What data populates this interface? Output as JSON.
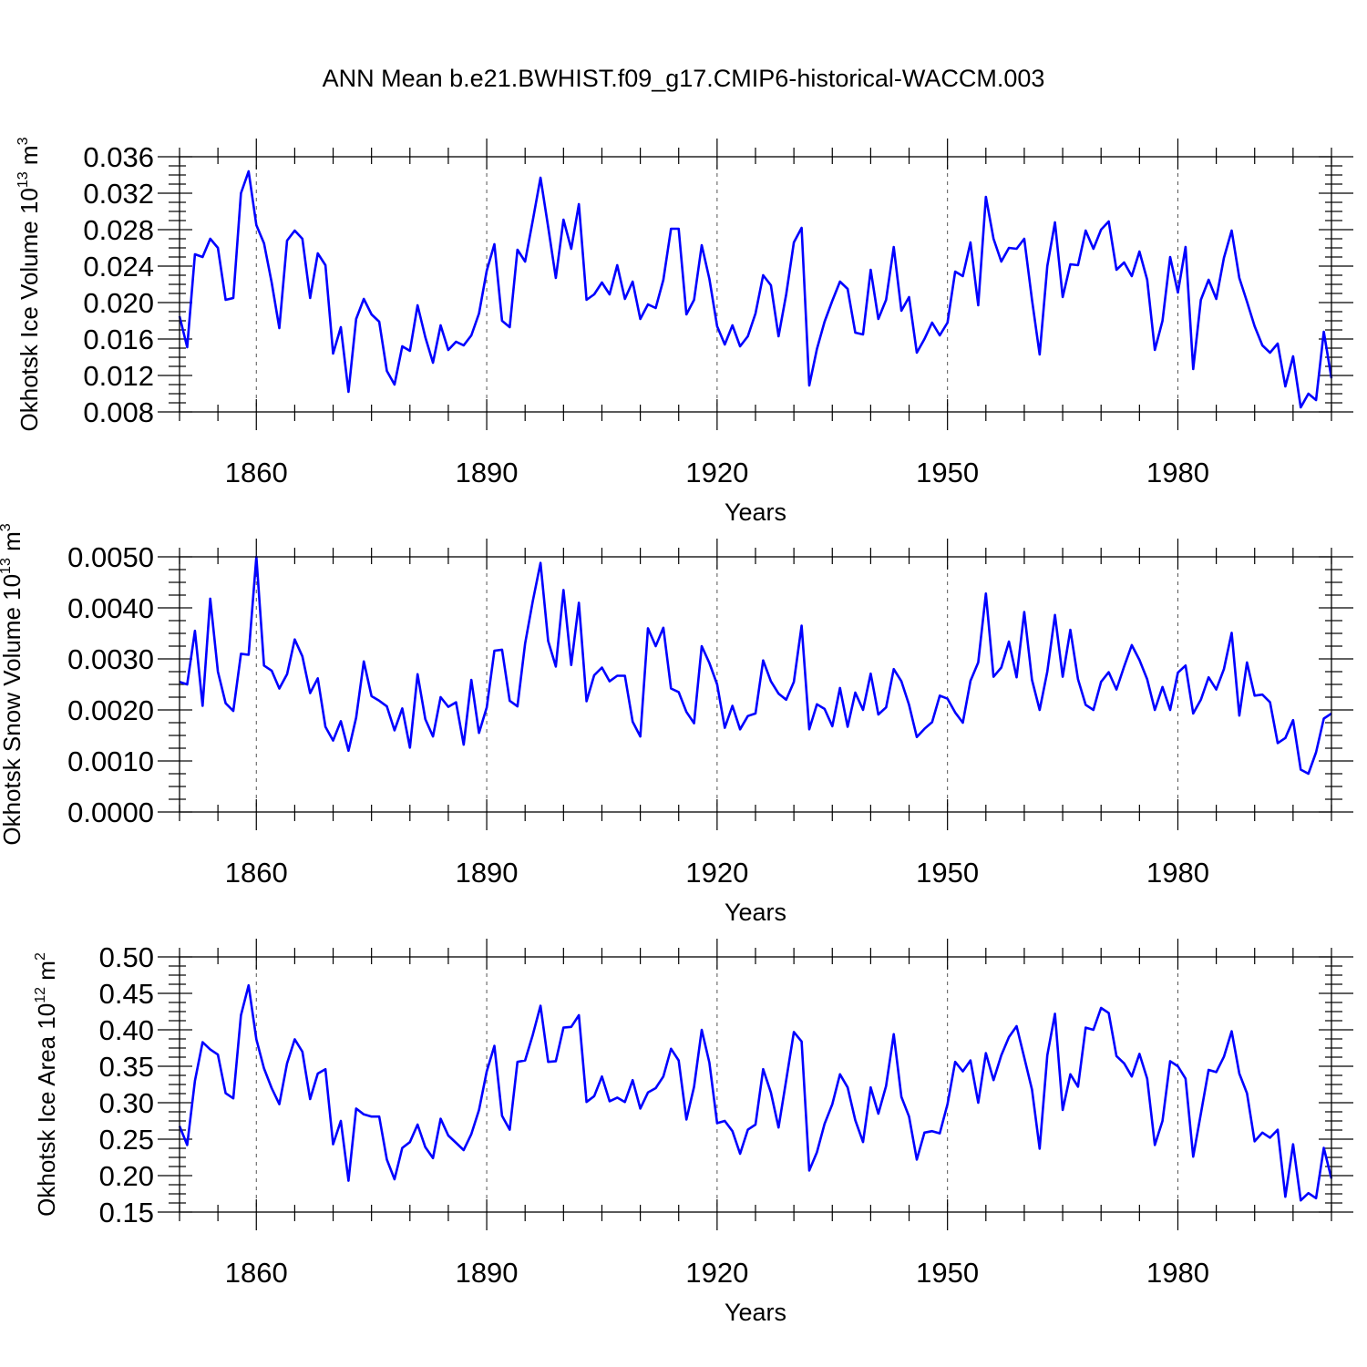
{
  "title": "ANN Mean b.e21.BWHIST.f09_g17.CMIP6-historical-WACCM.003",
  "colors": {
    "line": "#0000ff",
    "axes": "#000000"
  },
  "chart_data": [
    {
      "type": "line",
      "xlabel": "Years",
      "ylabel": {
        "text": "Okhotsk Ice Volume 10",
        "exp": "13",
        "unit": " m",
        "unit_exp": "3"
      },
      "xlim": [
        1850,
        2000
      ],
      "ylim": [
        0.008,
        0.036
      ],
      "xticks": [
        "1860",
        "1890",
        "1920",
        "1950",
        "1980"
      ],
      "yticks": [
        "0.008",
        "0.012",
        "0.016",
        "0.020",
        "0.024",
        "0.028",
        "0.032",
        "0.036"
      ],
      "grid": "dashed vertical at major x ticks",
      "x_start": 1850,
      "values": [
        0.0185,
        0.0151,
        0.0253,
        0.025,
        0.027,
        0.026,
        0.0203,
        0.0205,
        0.032,
        0.0344,
        0.0285,
        0.0265,
        0.0222,
        0.0172,
        0.0268,
        0.0279,
        0.027,
        0.0205,
        0.0254,
        0.0241,
        0.0144,
        0.0173,
        0.0102,
        0.0182,
        0.0204,
        0.0187,
        0.0179,
        0.0125,
        0.011,
        0.0152,
        0.0147,
        0.0197,
        0.0162,
        0.0134,
        0.0175,
        0.0148,
        0.0157,
        0.0153,
        0.0164,
        0.0188,
        0.0235,
        0.0264,
        0.018,
        0.0173,
        0.0258,
        0.0245,
        0.029,
        0.0337,
        0.0283,
        0.0227,
        0.0291,
        0.0259,
        0.0308,
        0.0203,
        0.0209,
        0.0222,
        0.0209,
        0.0241,
        0.0204,
        0.0223,
        0.0182,
        0.0198,
        0.0194,
        0.0225,
        0.0281,
        0.0281,
        0.0187,
        0.0203,
        0.0263,
        0.0226,
        0.0174,
        0.0154,
        0.0175,
        0.0152,
        0.0163,
        0.0188,
        0.023,
        0.0219,
        0.0163,
        0.0209,
        0.0266,
        0.0282,
        0.0109,
        0.0149,
        0.0179,
        0.0202,
        0.0223,
        0.0215,
        0.0167,
        0.0165,
        0.0236,
        0.0182,
        0.0203,
        0.0261,
        0.0191,
        0.0206,
        0.0145,
        0.016,
        0.0178,
        0.0164,
        0.0178,
        0.0234,
        0.0229,
        0.0266,
        0.0197,
        0.0316,
        0.027,
        0.0245,
        0.026,
        0.0259,
        0.027,
        0.0203,
        0.0143,
        0.024,
        0.0288,
        0.0206,
        0.0242,
        0.0241,
        0.0279,
        0.0259,
        0.028,
        0.0289,
        0.0236,
        0.0244,
        0.0229,
        0.0256,
        0.0225,
        0.0148,
        0.018,
        0.025,
        0.0211,
        0.0261,
        0.0127,
        0.0203,
        0.0225,
        0.0204,
        0.0249,
        0.0279,
        0.0227,
        0.0201,
        0.0174,
        0.0153,
        0.0145,
        0.0155,
        0.0108,
        0.0141,
        0.0085,
        0.01,
        0.0093,
        0.0168,
        0.0117
      ]
    },
    {
      "type": "line",
      "xlabel": "Years",
      "ylabel": {
        "text": "Okhotsk Snow Volume 10",
        "exp": "13",
        "unit": " m",
        "unit_exp": "3"
      },
      "xlim": [
        1850,
        2000
      ],
      "ylim": [
        0.0,
        0.005
      ],
      "xticks": [
        "1860",
        "1890",
        "1920",
        "1950",
        "1980"
      ],
      "yticks": [
        "0.0000",
        "0.0010",
        "0.0020",
        "0.0030",
        "0.0040",
        "0.0050"
      ],
      "grid": "dashed vertical at major x ticks",
      "x_start": 1850,
      "values": [
        0.00255,
        0.0025,
        0.00355,
        0.00208,
        0.00418,
        0.00275,
        0.00213,
        0.00198,
        0.0031,
        0.00308,
        0.005,
        0.00287,
        0.00277,
        0.00242,
        0.0027,
        0.00338,
        0.00305,
        0.00233,
        0.00262,
        0.00167,
        0.0014,
        0.00178,
        0.0012,
        0.00185,
        0.00295,
        0.00227,
        0.00218,
        0.00207,
        0.0016,
        0.00203,
        0.00126,
        0.0027,
        0.00182,
        0.00148,
        0.00225,
        0.00206,
        0.00215,
        0.00132,
        0.00259,
        0.00155,
        0.00205,
        0.00316,
        0.00318,
        0.00218,
        0.00207,
        0.0033,
        0.00413,
        0.00488,
        0.00335,
        0.00285,
        0.00435,
        0.00288,
        0.0041,
        0.00217,
        0.00268,
        0.00283,
        0.00256,
        0.00267,
        0.00267,
        0.00177,
        0.00148,
        0.0036,
        0.00325,
        0.00361,
        0.00242,
        0.00235,
        0.00196,
        0.00174,
        0.00325,
        0.00292,
        0.0025,
        0.00165,
        0.00208,
        0.00162,
        0.00188,
        0.00193,
        0.00297,
        0.00256,
        0.00232,
        0.0022,
        0.00255,
        0.00365,
        0.00162,
        0.00211,
        0.00202,
        0.00168,
        0.00243,
        0.00167,
        0.00234,
        0.002,
        0.00271,
        0.00191,
        0.00205,
        0.0028,
        0.00256,
        0.0021,
        0.00147,
        0.00163,
        0.00176,
        0.00228,
        0.00222,
        0.00195,
        0.00175,
        0.00257,
        0.00293,
        0.00428,
        0.00265,
        0.00283,
        0.00334,
        0.00264,
        0.00392,
        0.00259,
        0.002,
        0.00275,
        0.00386,
        0.00265,
        0.00357,
        0.0026,
        0.0021,
        0.002,
        0.00255,
        0.00274,
        0.0024,
        0.00285,
        0.00327,
        0.00298,
        0.0026,
        0.002,
        0.00245,
        0.002,
        0.00273,
        0.00287,
        0.00193,
        0.0022,
        0.00264,
        0.0024,
        0.0028,
        0.00351,
        0.00189,
        0.00293,
        0.00228,
        0.0023,
        0.00215,
        0.00135,
        0.00145,
        0.0018,
        0.00083,
        0.00075,
        0.00117,
        0.00183,
        0.00193
      ]
    },
    {
      "type": "line",
      "xlabel": "Years",
      "ylabel": {
        "text": "Okhotsk Ice Area 10",
        "exp": "12",
        "unit": " m",
        "unit_exp": "2"
      },
      "xlim": [
        1850,
        2000
      ],
      "ylim": [
        0.15,
        0.5
      ],
      "xticks": [
        "1860",
        "1890",
        "1920",
        "1950",
        "1980"
      ],
      "yticks": [
        "0.15",
        "0.20",
        "0.25",
        "0.30",
        "0.35",
        "0.40",
        "0.45",
        "0.50"
      ],
      "grid": "dashed vertical at major x ticks",
      "x_start": 1850,
      "values": [
        0.268,
        0.242,
        0.33,
        0.383,
        0.373,
        0.366,
        0.313,
        0.306,
        0.42,
        0.461,
        0.387,
        0.347,
        0.32,
        0.298,
        0.354,
        0.387,
        0.37,
        0.305,
        0.34,
        0.346,
        0.243,
        0.275,
        0.193,
        0.292,
        0.284,
        0.281,
        0.281,
        0.222,
        0.195,
        0.238,
        0.246,
        0.27,
        0.239,
        0.224,
        0.278,
        0.255,
        0.245,
        0.235,
        0.257,
        0.29,
        0.343,
        0.378,
        0.282,
        0.263,
        0.356,
        0.358,
        0.393,
        0.433,
        0.356,
        0.357,
        0.403,
        0.404,
        0.42,
        0.301,
        0.309,
        0.336,
        0.302,
        0.307,
        0.301,
        0.331,
        0.292,
        0.314,
        0.32,
        0.336,
        0.374,
        0.358,
        0.277,
        0.322,
        0.4,
        0.355,
        0.272,
        0.275,
        0.261,
        0.23,
        0.263,
        0.27,
        0.346,
        0.314,
        0.266,
        0.331,
        0.397,
        0.384,
        0.207,
        0.232,
        0.271,
        0.298,
        0.339,
        0.321,
        0.276,
        0.246,
        0.321,
        0.285,
        0.323,
        0.394,
        0.308,
        0.281,
        0.222,
        0.259,
        0.261,
        0.258,
        0.298,
        0.356,
        0.343,
        0.358,
        0.3,
        0.368,
        0.331,
        0.365,
        0.39,
        0.405,
        0.362,
        0.318,
        0.237,
        0.365,
        0.422,
        0.29,
        0.339,
        0.322,
        0.403,
        0.4,
        0.43,
        0.423,
        0.364,
        0.354,
        0.336,
        0.367,
        0.333,
        0.242,
        0.275,
        0.357,
        0.35,
        0.333,
        0.226,
        0.285,
        0.345,
        0.342,
        0.363,
        0.398,
        0.34,
        0.313,
        0.247,
        0.259,
        0.252,
        0.263,
        0.171,
        0.243,
        0.166,
        0.176,
        0.169,
        0.238,
        0.196
      ]
    }
  ]
}
